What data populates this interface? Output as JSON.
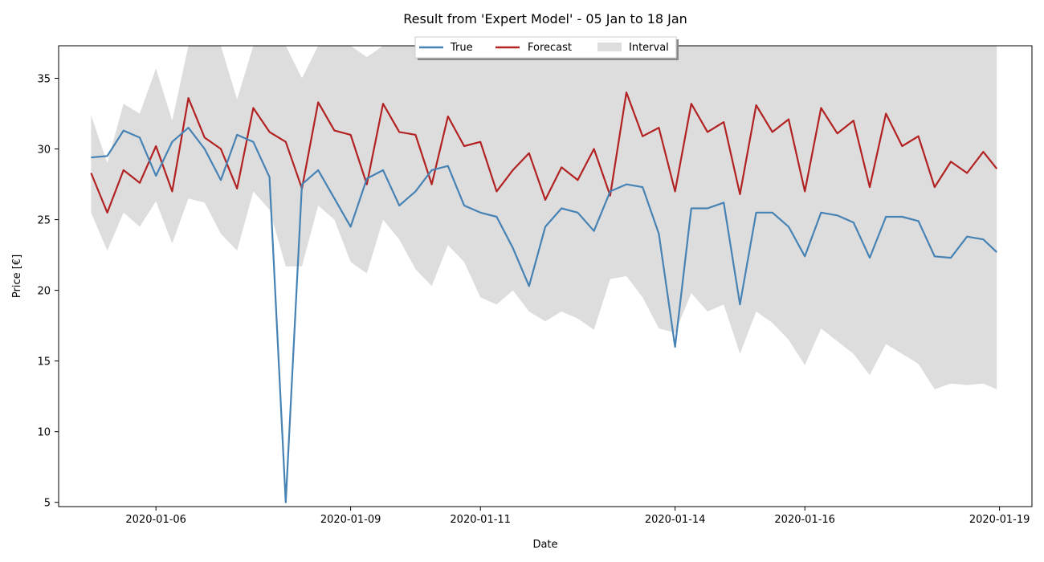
{
  "chart_data": {
    "type": "line",
    "title": "Result from 'Expert Model' - 05 Jan to 18 Jan",
    "xlabel": "Date",
    "ylabel": "Price [€]",
    "x_range": [
      "2020-01-04T12:00",
      "2020-01-19T12:00"
    ],
    "ylim": [
      4.7,
      37.3
    ],
    "x_ticks": [
      "2020-01-06",
      "2020-01-09",
      "2020-01-11",
      "2020-01-14",
      "2020-01-16",
      "2020-01-19"
    ],
    "y_ticks": [
      5,
      10,
      15,
      20,
      25,
      30,
      35
    ],
    "grid": false,
    "legend_position": "top-center",
    "x": [
      "2020-01-05T00:00",
      "2020-01-05T06:00",
      "2020-01-05T12:00",
      "2020-01-05T18:00",
      "2020-01-06T00:00",
      "2020-01-06T06:00",
      "2020-01-06T12:00",
      "2020-01-06T18:00",
      "2020-01-07T00:00",
      "2020-01-07T06:00",
      "2020-01-07T12:00",
      "2020-01-07T18:00",
      "2020-01-08T00:00",
      "2020-01-08T06:00",
      "2020-01-08T12:00",
      "2020-01-08T18:00",
      "2020-01-09T00:00",
      "2020-01-09T06:00",
      "2020-01-09T12:00",
      "2020-01-09T18:00",
      "2020-01-10T00:00",
      "2020-01-10T06:00",
      "2020-01-10T12:00",
      "2020-01-10T18:00",
      "2020-01-11T00:00",
      "2020-01-11T06:00",
      "2020-01-11T12:00",
      "2020-01-11T18:00",
      "2020-01-12T00:00",
      "2020-01-12T06:00",
      "2020-01-12T12:00",
      "2020-01-12T18:00",
      "2020-01-13T00:00",
      "2020-01-13T06:00",
      "2020-01-13T12:00",
      "2020-01-13T18:00",
      "2020-01-14T00:00",
      "2020-01-14T06:00",
      "2020-01-14T12:00",
      "2020-01-14T18:00",
      "2020-01-15T00:00",
      "2020-01-15T06:00",
      "2020-01-15T12:00",
      "2020-01-15T18:00",
      "2020-01-16T00:00",
      "2020-01-16T06:00",
      "2020-01-16T12:00",
      "2020-01-16T18:00",
      "2020-01-17T00:00",
      "2020-01-17T06:00",
      "2020-01-17T12:00",
      "2020-01-17T18:00",
      "2020-01-18T00:00",
      "2020-01-18T06:00",
      "2020-01-18T12:00",
      "2020-01-18T18:00",
      "2020-01-18T23:00"
    ],
    "series": [
      {
        "name": "True",
        "color": "#4682b4",
        "values": [
          29.4,
          29.5,
          31.3,
          30.8,
          28.1,
          30.5,
          31.5,
          30.0,
          27.8,
          31.0,
          30.5,
          28.0,
          5.0,
          27.5,
          28.5,
          26.5,
          24.5,
          27.9,
          28.5,
          26.0,
          27.0,
          28.5,
          28.8,
          26.0,
          25.5,
          25.2,
          23.0,
          20.3,
          24.5,
          25.8,
          25.5,
          24.2,
          27.0,
          27.5,
          27.3,
          24.0,
          16.0,
          25.8,
          25.8,
          26.2,
          19.0,
          25.5,
          25.5,
          24.5,
          22.4,
          25.5,
          25.3,
          24.8,
          22.3,
          25.2,
          25.2,
          24.9,
          22.4,
          22.3,
          23.8,
          23.6,
          22.7
        ]
      },
      {
        "name": "Forecast",
        "color": "#b22222",
        "values": [
          28.3,
          25.5,
          28.5,
          27.6,
          30.2,
          27.0,
          33.6,
          30.8,
          30.0,
          27.2,
          32.9,
          31.2,
          30.5,
          27.2,
          33.3,
          31.3,
          31.0,
          27.5,
          33.2,
          31.2,
          31.0,
          27.5,
          32.3,
          30.2,
          30.5,
          27.0,
          28.5,
          29.7,
          26.4,
          28.7,
          27.8,
          30.0,
          26.7,
          34.0,
          30.9,
          31.5,
          27.0,
          33.2,
          31.2,
          31.9,
          26.8,
          33.1,
          31.2,
          32.1,
          27.0,
          32.9,
          31.1,
          32.0,
          27.3,
          32.5,
          30.2,
          30.9,
          27.3,
          29.1,
          28.3,
          29.8,
          28.6
        ]
      },
      {
        "name": "Interval",
        "color": "#dddddd",
        "upper": [
          32.4,
          29.0,
          33.2,
          32.5,
          35.7,
          32.0,
          37.3,
          37.3,
          37.3,
          33.5,
          37.3,
          37.3,
          37.3,
          35.0,
          37.3,
          37.3,
          37.3,
          36.5,
          37.3,
          37.3,
          37.3,
          37.3,
          37.3,
          37.3,
          37.3,
          37.3,
          37.3,
          37.3,
          37.3,
          37.3,
          37.3,
          37.3,
          37.3,
          37.3,
          37.3,
          37.3,
          37.3,
          37.3,
          37.3,
          37.3,
          37.3,
          37.3,
          37.3,
          37.3,
          37.3,
          37.3,
          37.3,
          37.3,
          37.3,
          37.3,
          37.3,
          37.3,
          37.3,
          37.3,
          37.3,
          37.3,
          37.3
        ],
        "lower": [
          25.5,
          22.8,
          25.5,
          24.5,
          26.3,
          23.3,
          26.5,
          26.2,
          24.0,
          22.8,
          27.0,
          25.7,
          21.7,
          21.7,
          26.0,
          25.0,
          22.0,
          21.2,
          25.0,
          23.6,
          21.5,
          20.3,
          23.2,
          22.0,
          19.5,
          19.0,
          20.0,
          18.5,
          17.8,
          18.5,
          18.0,
          17.2,
          20.8,
          21.0,
          19.5,
          17.3,
          17.0,
          19.8,
          18.5,
          19.0,
          15.5,
          18.5,
          17.7,
          16.5,
          14.7,
          17.3,
          16.4,
          15.5,
          14.0,
          16.2,
          15.5,
          14.8,
          13.0,
          13.4,
          13.3,
          13.4,
          13.0
        ]
      }
    ],
    "legend": [
      "True",
      "Forecast",
      "Interval"
    ]
  }
}
